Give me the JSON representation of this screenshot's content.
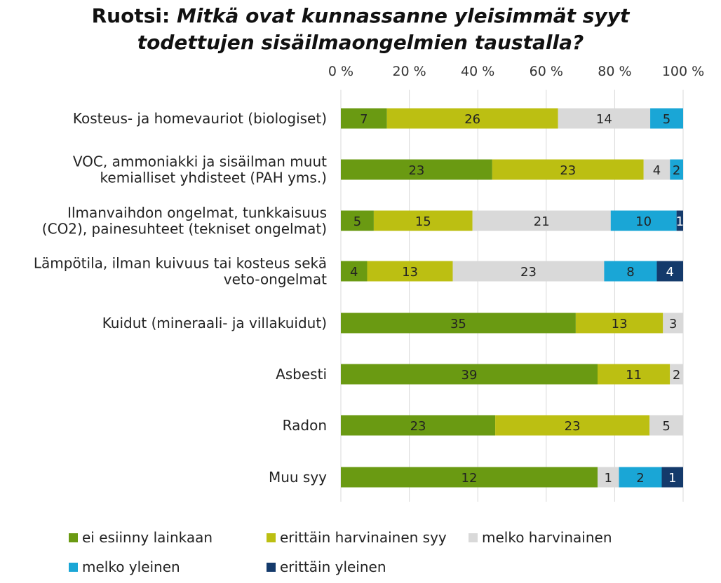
{
  "title": {
    "prefix": "Ruotsi: ",
    "question_line1": "Mitkä ovat kunnassanne yleisimmät syyt",
    "question_line2": "todettujen sisäilmaongelmien taustalla?"
  },
  "chart_data": {
    "type": "bar",
    "orientation": "horizontal",
    "stacking": "percent",
    "xlim": [
      0,
      100
    ],
    "xticks": [
      "0 %",
      "20 %",
      "40 %",
      "60 %",
      "80 %",
      "100 %"
    ],
    "grid": true,
    "legend_position": "bottom",
    "categories": [
      [
        "Kosteus- ja homevauriot (biologiset)"
      ],
      [
        "VOC, ammoniakki ja sisäilman muut",
        "kemialliset yhdisteet (PAH yms.)"
      ],
      [
        "Ilmanvaihdon ongelmat, tunkkaisuus",
        "(CO2), painesuhteet (tekniset ongelmat)"
      ],
      [
        "Lämpötila, ilman kuivuus tai kosteus sekä",
        "veto-ongelmat"
      ],
      [
        "Kuidut (mineraali- ja villakuidut)"
      ],
      [
        "Asbesti"
      ],
      [
        "Radon"
      ],
      [
        "Muu syy"
      ]
    ],
    "series": [
      {
        "name": "ei esiinny lainkaan",
        "color": "#6a9a12",
        "values": [
          7,
          23,
          5,
          4,
          35,
          39,
          23,
          12
        ]
      },
      {
        "name": "erittäin harvinainen syy",
        "color": "#bcbf12",
        "values": [
          26,
          23,
          15,
          13,
          13,
          11,
          23,
          0
        ]
      },
      {
        "name": "melko harvinainen",
        "color": "#d9d9d9",
        "values": [
          14,
          4,
          21,
          23,
          3,
          2,
          5,
          1
        ]
      },
      {
        "name": "melko yleinen",
        "color": "#1aa6d6",
        "values": [
          5,
          2,
          10,
          8,
          0,
          0,
          0,
          2
        ]
      },
      {
        "name": "erittäin yleinen",
        "color": "#143a6b",
        "values": [
          0,
          0,
          1,
          4,
          0,
          0,
          0,
          1
        ]
      }
    ]
  }
}
